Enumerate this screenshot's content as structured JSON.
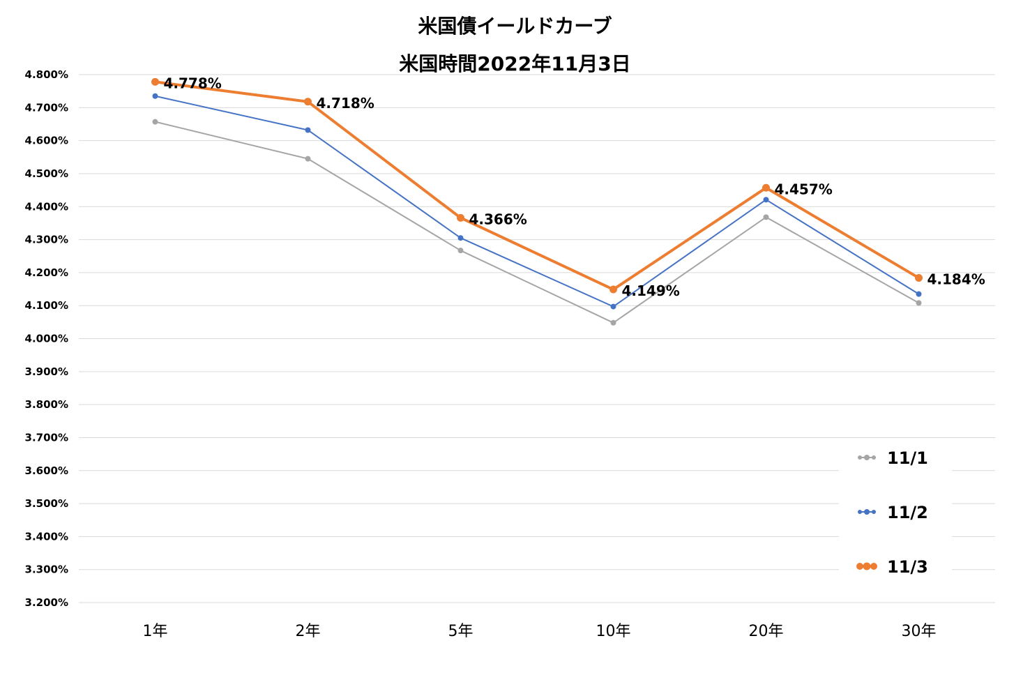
{
  "chart_data": {
    "type": "line",
    "title": "米国債イールドカーブ",
    "subtitle": "米国時間2022年11月3日",
    "categories": [
      "1年",
      "2年",
      "5年",
      "10年",
      "20年",
      "30年"
    ],
    "ylim": [
      3.2,
      4.8
    ],
    "ytick_step": 0.1,
    "ytick_format": "%.3f%",
    "grid": true,
    "legend_position": "bottom-right",
    "series": [
      {
        "name": "11/1",
        "color": "#a5a5a5",
        "values": [
          4.657,
          4.545,
          4.267,
          4.048,
          4.368,
          4.108
        ],
        "labels": false
      },
      {
        "name": "11/2",
        "color": "#4472c4",
        "values": [
          4.735,
          4.632,
          4.305,
          4.097,
          4.421,
          4.135
        ],
        "labels": false
      },
      {
        "name": "11/3",
        "color": "#ed7d31",
        "values": [
          4.778,
          4.718,
          4.366,
          4.149,
          4.457,
          4.184
        ],
        "labels": true,
        "data_labels": [
          "4.778%",
          "4.718%",
          "4.366%",
          "4.149%",
          "4.457%",
          "4.184%"
        ]
      }
    ]
  }
}
